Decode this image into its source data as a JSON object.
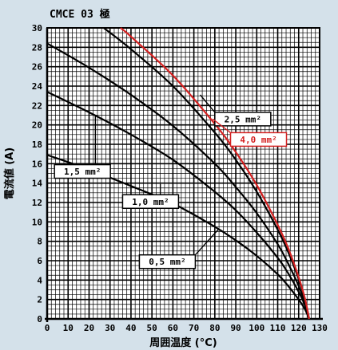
{
  "chart_data": {
    "type": "line",
    "title": "CMCE 03 極",
    "xlabel": "周囲温度 (°C)",
    "ylabel": "電流値 (A)",
    "xlim": [
      0,
      130
    ],
    "ylim": [
      0,
      30
    ],
    "xticks": [
      "0",
      "10",
      "20",
      "30",
      "40",
      "50",
      "60",
      "70",
      "80",
      "90",
      "100",
      "110",
      "120",
      "130"
    ],
    "yticks": [
      "0",
      "2",
      "4",
      "6",
      "8",
      "10",
      "12",
      "14",
      "16",
      "18",
      "20",
      "22",
      "24",
      "26",
      "28",
      "30"
    ],
    "grid": true,
    "series": [
      {
        "name": "0,5 mm²",
        "color": "#000000",
        "x": [
          0,
          20,
          40,
          60,
          80,
          90,
          100,
          110,
          115,
          120,
          123,
          125
        ],
        "y": [
          16.9,
          15.4,
          13.7,
          11.9,
          9.5,
          8.1,
          6.5,
          4.6,
          3.4,
          2.0,
          1.0,
          0
        ]
      },
      {
        "name": "1,0 mm²",
        "color": "#000000",
        "x": [
          0,
          20,
          40,
          60,
          80,
          90,
          100,
          110,
          115,
          120,
          123,
          125
        ],
        "y": [
          23.4,
          21.3,
          19.0,
          16.4,
          13.1,
          11.2,
          8.9,
          6.3,
          4.7,
          2.8,
          1.4,
          0
        ]
      },
      {
        "name": "1,5 mm²",
        "color": "#000000",
        "x": [
          0,
          20,
          40,
          60,
          80,
          90,
          100,
          110,
          115,
          120,
          123,
          125
        ],
        "y": [
          28.4,
          25.9,
          23.1,
          19.9,
          16.0,
          13.6,
          10.9,
          7.7,
          5.7,
          3.4,
          1.6,
          0
        ]
      },
      {
        "name": "2,5 mm²",
        "color": "#000000",
        "x": [
          27,
          40,
          60,
          80,
          90,
          100,
          110,
          115,
          120,
          123,
          125
        ],
        "y": [
          30,
          27.8,
          24.0,
          19.2,
          16.4,
          13.1,
          9.2,
          6.9,
          4.1,
          2.0,
          0
        ]
      },
      {
        "name": "4,0 mm²",
        "color": "#d42020",
        "x": [
          35,
          40,
          60,
          80,
          90,
          100,
          110,
          115,
          120,
          123,
          125
        ],
        "y": [
          30,
          29.1,
          25.1,
          20.1,
          17.2,
          13.8,
          9.7,
          7.3,
          4.3,
          2.1,
          0
        ]
      }
    ],
    "labels": [
      {
        "text": "2,5 mm²",
        "color": "#000000",
        "series": "2,5 mm²"
      },
      {
        "text": "4,0 mm²",
        "color": "#d42020",
        "series": "4,0 mm²"
      },
      {
        "text": "1,5 mm²",
        "color": "#000000",
        "series": "1,5 mm²"
      },
      {
        "text": "1,0 mm²",
        "color": "#000000",
        "series": "1,0 mm²"
      },
      {
        "text": "0,5 mm²",
        "color": "#000000",
        "series": "0,5 mm²"
      }
    ]
  }
}
